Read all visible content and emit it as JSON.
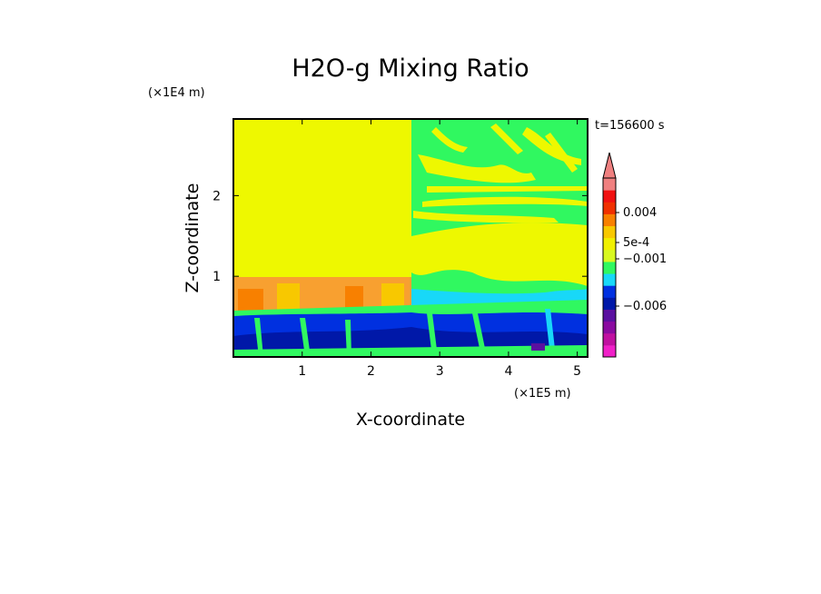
{
  "chart_data": {
    "type": "heatmap",
    "title": "H2O-g Mixing Ratio",
    "xlabel": "X-coordinate",
    "ylabel": "Z-coordinate",
    "x_scale_label": "(×1E5 m)",
    "y_scale_label": "(×1E4 m)",
    "time_label": "t=156600 s",
    "xlim": [
      0,
      5.15
    ],
    "ylim": [
      0,
      2.95
    ],
    "x_ticks": [
      1,
      2,
      3,
      4,
      5
    ],
    "y_ticks": [
      1,
      2
    ],
    "colorbar": {
      "labels": [
        "0.004",
        "5e-4",
        "−0.001",
        "−0.006"
      ],
      "colors": [
        "#f020c8",
        "#c010a0",
        "#8a0aa0",
        "#5a10a0",
        "#0018a8",
        "#0030e0",
        "#18d8f8",
        "#30f860",
        "#d8f820",
        "#f0f000",
        "#f8c800",
        "#f88000",
        "#f03000",
        "#f01010",
        "#f08080"
      ]
    }
  }
}
